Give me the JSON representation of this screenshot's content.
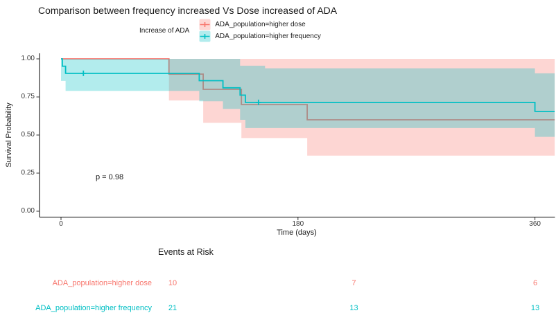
{
  "title": "Comparison between frequency increased Vs Dose increased of ADA",
  "legend": {
    "title": "Increase of ADA",
    "items": [
      {
        "label": "ADA_population=higher dose"
      },
      {
        "label": "ADA_population=higher frequency"
      }
    ]
  },
  "chart_data": {
    "type": "km_survival_step",
    "xlabel": "Time (days)",
    "ylabel": "Survival Probability",
    "p_value": "p = 0.98",
    "x_ticks": [
      0,
      180,
      360
    ],
    "y_ticks": [
      0.0,
      0.25,
      0.5,
      0.75,
      1.0
    ],
    "xlim": [
      -16,
      375
    ],
    "ylim": [
      0,
      1
    ],
    "grid": false,
    "legend_position": "top",
    "series": [
      {
        "name": "ADA_population=higher dose",
        "color": "#F8766D",
        "n_start": 10,
        "steps": [
          [
            0,
            1.0
          ],
          [
            82,
            0.9
          ],
          [
            108,
            0.8
          ],
          [
            137,
            0.7
          ],
          [
            187,
            0.6
          ]
        ],
        "t_end": 375,
        "censors": [],
        "ci": {
          "t_end": 375,
          "upper": [
            [
              82,
              1.0
            ]
          ],
          "lower": [
            [
              82,
              0.727
            ],
            [
              108,
              0.58
            ],
            [
              137,
              0.48
            ],
            [
              187,
              0.365
            ]
          ]
        }
      },
      {
        "name": "ADA_population=higher frequency",
        "color": "#00BFC4",
        "n_start": 21,
        "steps": [
          [
            0,
            1.0
          ],
          [
            1,
            0.952
          ],
          [
            3.5,
            0.905
          ],
          [
            105,
            0.857
          ],
          [
            123,
            0.81
          ],
          [
            136,
            0.762
          ],
          [
            140,
            0.714
          ],
          [
            360,
            0.655
          ]
        ],
        "t_end": 375,
        "censors": [
          [
            17,
            0.905
          ],
          [
            150,
            0.714
          ]
        ],
        "ci": {
          "t_end": 375,
          "upper": [
            [
              0,
              1.0
            ],
            [
              136,
              0.955
            ],
            [
              155,
              0.938
            ],
            [
              360,
              0.905
            ]
          ],
          "lower": [
            [
              0,
              0.855
            ],
            [
              3.5,
              0.79
            ],
            [
              105,
              0.722
            ],
            [
              123,
              0.672
            ],
            [
              136,
              0.6
            ],
            [
              140,
              0.546
            ],
            [
              360,
              0.488
            ]
          ]
        }
      }
    ]
  },
  "risk_table": {
    "title": "Events at Risk",
    "times": [
      0,
      180,
      360
    ],
    "rows": [
      {
        "label": "ADA_population=higher dose",
        "values": [
          "10",
          "7",
          "6"
        ]
      },
      {
        "label": "ADA_population=higher frequency",
        "values": [
          "21",
          "13",
          "13"
        ]
      }
    ]
  }
}
